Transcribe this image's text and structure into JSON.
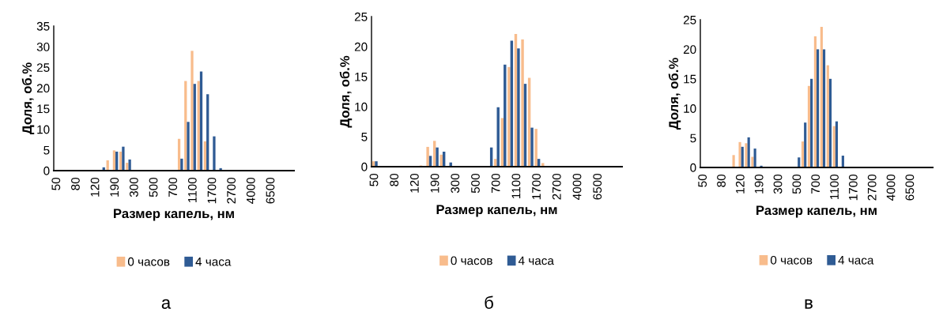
{
  "chart_data": [
    {
      "type": "bar",
      "xlabel": "Размер капель, нм",
      "ylabel": "Доля, об.%",
      "annotations": [
        "а"
      ],
      "categories": [
        "50",
        null,
        null,
        "80",
        null,
        null,
        "120",
        null,
        null,
        "190",
        null,
        null,
        "300",
        null,
        null,
        "500",
        null,
        null,
        "700",
        null,
        null,
        "1100",
        null,
        null,
        "1700",
        null,
        null,
        "2700",
        null,
        null,
        "4000",
        null,
        null,
        "6500",
        null,
        null,
        null
      ],
      "series": [
        {
          "name": "0 часов",
          "color": "#f8bc8c",
          "values": [
            0,
            0,
            0,
            0,
            0,
            0,
            0,
            0,
            2.5,
            4.9,
            4.6,
            1.9,
            0,
            0,
            0,
            0,
            0,
            0,
            0,
            7.7,
            21.7,
            29,
            21.7,
            7.1,
            0,
            0,
            0,
            0,
            0,
            0,
            0,
            0,
            0,
            0,
            0,
            0,
            0
          ]
        },
        {
          "name": "4 часа",
          "color": "#2f5b94",
          "values": [
            0,
            0,
            0,
            0,
            0,
            0,
            0,
            0.8,
            0,
            4.6,
            5.8,
            2.7,
            0,
            0,
            0,
            0,
            0,
            0,
            0,
            2.9,
            11.8,
            21,
            24,
            18.5,
            8.3,
            0.6,
            0,
            0,
            0,
            0,
            0,
            0,
            0,
            0,
            0,
            0,
            0
          ]
        }
      ],
      "ylim": [
        0,
        35
      ],
      "yticks": [
        0,
        5,
        10,
        15,
        20,
        25,
        30,
        35
      ],
      "grid": false,
      "legend": "bottom"
    },
    {
      "type": "bar",
      "xlabel": "Размер капель, нм",
      "ylabel": "Доля, об.%",
      "annotations": [
        "б"
      ],
      "categories": [
        "50",
        null,
        null,
        "80",
        null,
        null,
        "120",
        null,
        null,
        "190",
        null,
        null,
        "300",
        null,
        null,
        "500",
        null,
        null,
        "700",
        null,
        null,
        "1100",
        null,
        null,
        "1700",
        null,
        null,
        "2700",
        null,
        null,
        "4000",
        null,
        null,
        "6500",
        null,
        null,
        null
      ],
      "series": [
        {
          "name": "0 часов",
          "color": "#f8bc8c",
          "values": [
            0.9,
            0,
            0,
            0,
            0,
            0,
            0,
            0.2,
            3.3,
            4.3,
            2.0,
            0,
            0,
            0,
            0,
            0,
            0,
            0,
            1.3,
            8.1,
            16.6,
            22.1,
            21.2,
            14.8,
            6.3,
            0.6,
            0,
            0,
            0,
            0,
            0,
            0,
            0,
            0,
            0,
            0,
            0
          ]
        },
        {
          "name": "4 часа",
          "color": "#2f5b94",
          "values": [
            0.9,
            0,
            0,
            0,
            0,
            0,
            0,
            0,
            1.8,
            3.2,
            2.5,
            0.7,
            0,
            0,
            0,
            0,
            0,
            3.2,
            9.9,
            17,
            21,
            19.7,
            13.8,
            6.5,
            1.3,
            0,
            0,
            0,
            0,
            0,
            0,
            0,
            0,
            0,
            0,
            0,
            0
          ]
        }
      ],
      "ylim": [
        0,
        25
      ],
      "yticks": [
        0,
        5,
        10,
        15,
        20,
        25
      ],
      "grid": false,
      "legend": "bottom"
    },
    {
      "type": "bar",
      "xlabel": "Размер капель, нм",
      "ylabel": "Доля, об.%",
      "annotations": [
        "в"
      ],
      "categories": [
        "50",
        null,
        null,
        "80",
        null,
        null,
        "120",
        null,
        null,
        "190",
        null,
        null,
        "300",
        null,
        null,
        "500",
        null,
        null,
        "700",
        null,
        null,
        "1100",
        null,
        null,
        "1700",
        null,
        null,
        "2700",
        null,
        null,
        "4000",
        null,
        null,
        "6500",
        null,
        null,
        null
      ],
      "series": [
        {
          "name": "0 часов",
          "color": "#f8bc8c",
          "values": [
            0,
            0,
            0,
            0,
            0,
            2.1,
            4.3,
            4.1,
            1.8,
            0,
            0,
            0,
            0,
            0,
            0,
            0,
            4.4,
            13.8,
            22.2,
            23.8,
            17.3,
            7,
            0,
            0,
            0,
            0,
            0,
            0,
            0,
            0,
            0,
            0,
            0,
            0,
            0,
            0,
            0
          ]
        },
        {
          "name": "4 часа",
          "color": "#2f5b94",
          "values": [
            0,
            0,
            0,
            0,
            0,
            0,
            3.5,
            5.1,
            3.2,
            0.3,
            0,
            0,
            0,
            0,
            0,
            1.7,
            7.6,
            15,
            20,
            20,
            15,
            7.8,
            2,
            0,
            0,
            0,
            0,
            0,
            0,
            0,
            0,
            0,
            0,
            0,
            0,
            0,
            0
          ]
        }
      ],
      "ylim": [
        0,
        25
      ],
      "yticks": [
        0,
        5,
        10,
        15,
        20,
        25
      ],
      "grid": false,
      "legend": "bottom"
    }
  ]
}
